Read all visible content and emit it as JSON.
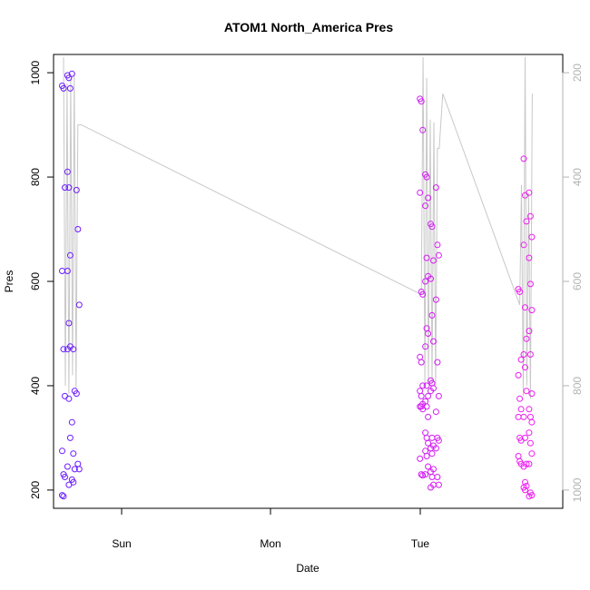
{
  "chart_data": {
    "type": "scatter",
    "title": "ATOM1 North_America Pres",
    "xlabel": "Date",
    "ylabel": "Pres",
    "x_ticks": [
      "Sun",
      "Mon",
      "Tue"
    ],
    "y_ticks": [
      200,
      400,
      600,
      800,
      1000
    ],
    "y_right_ticks": [
      200,
      400,
      600,
      800,
      1000
    ],
    "ylim": [
      165,
      1035
    ],
    "y_right_lim": [
      1035,
      165
    ],
    "colors": {
      "line": "#c8c8c8",
      "scatter_start": "#6a1cff",
      "scatter_end": "#f01cf0",
      "axis": "#000000",
      "right_axis": "#b3b3b3"
    },
    "series": [
      {
        "kind": "points",
        "groups": [
          {
            "x": 0.0,
            "y": [
              975,
              970,
              780,
              620,
              470,
              380,
              275,
              230,
              225,
              190,
              188
            ]
          },
          {
            "x": 0.03,
            "y": [
              995,
              990,
              970,
              810,
              780,
              650,
              620,
              520,
              475,
              470,
              375,
              300,
              245,
              210
            ]
          },
          {
            "x": 0.055,
            "y": [
              998,
              470,
              390,
              330,
              270,
              240,
              220,
              215
            ]
          },
          {
            "x": 0.08,
            "y": [
              775,
              700,
              555,
              385,
              250,
              240
            ]
          },
          {
            "x": 2.0,
            "y": [
              950,
              945,
              890,
              770,
              580,
              575,
              455,
              445,
              400,
              390,
              380,
              365,
              360,
              360,
              355,
              260,
              230,
              228
            ]
          },
          {
            "x": 2.03,
            "y": [
              805,
              800,
              760,
              745,
              645,
              610,
              600,
              510,
              500,
              475,
              400,
              380,
              370,
              360,
              340,
              310,
              300,
              290,
              275,
              265,
              245,
              230
            ]
          },
          {
            "x": 2.06,
            "y": [
              710,
              705,
              640,
              605,
              535,
              485,
              410,
              405,
              395,
              390,
              300,
              285,
              280,
              270,
              240,
              235,
              225,
              210,
              205
            ]
          },
          {
            "x": 2.09,
            "y": [
              780,
              670,
              650,
              565,
              445,
              380,
              350,
              300,
              295,
              280,
              225,
              210
            ]
          },
          {
            "x": 2.55,
            "y": [
              585,
              580,
              450,
              420,
              375,
              355,
              340,
              300,
              295,
              265,
              255,
              250
            ]
          },
          {
            "x": 2.58,
            "y": [
              835,
              765,
              715,
              670,
              550,
              490,
              460,
              435,
              390,
              340,
              300,
              250,
              245,
              215,
              208,
              205,
              200
            ]
          },
          {
            "x": 2.61,
            "y": [
              770,
              725,
              685,
              645,
              595,
              545,
              505,
              460,
              385,
              355,
              340,
              330,
              310,
              290,
              270,
              250,
              195,
              190,
              188
            ]
          }
        ]
      },
      {
        "kind": "line",
        "x": [
          0.0,
          0.01,
          0.02,
          0.03,
          0.04,
          0.05,
          0.06,
          0.07,
          0.08,
          0.1,
          2.0,
          2.01,
          2.02,
          2.03,
          2.04,
          2.05,
          2.06,
          2.07,
          2.08,
          2.09,
          2.1,
          2.12,
          2.55,
          2.56,
          2.57,
          2.58,
          2.59,
          2.6,
          2.61,
          2.62
        ],
        "y": [
          1030,
          400,
          980,
          385,
          990,
          420,
          1000,
          395,
          900,
          900,
          575,
          1030,
          400,
          990,
          405,
          910,
          400,
          905,
          400,
          855,
          855,
          960,
          555,
          785,
          380,
          1030,
          400,
          770,
          375,
          960
        ]
      }
    ]
  }
}
